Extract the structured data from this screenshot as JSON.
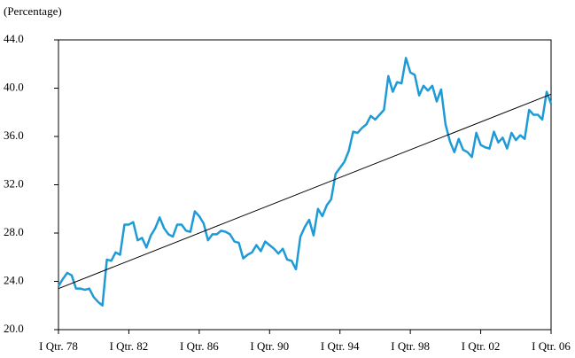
{
  "chart_data": {
    "type": "line",
    "y_label": "(Percentage)",
    "categories": [
      "I Qtr. 78",
      null,
      null,
      null,
      null,
      null,
      null,
      null,
      null,
      null,
      null,
      null,
      null,
      null,
      null,
      null,
      "I Qtr. 82",
      null,
      null,
      null,
      null,
      null,
      null,
      null,
      null,
      null,
      null,
      null,
      null,
      null,
      null,
      null,
      "I Qtr. 86",
      null,
      null,
      null,
      null,
      null,
      null,
      null,
      null,
      null,
      null,
      null,
      null,
      null,
      null,
      null,
      "I Qtr. 90",
      null,
      null,
      null,
      null,
      null,
      null,
      null,
      null,
      null,
      null,
      null,
      null,
      null,
      null,
      null,
      "I Qtr. 94",
      null,
      null,
      null,
      null,
      null,
      null,
      null,
      null,
      null,
      null,
      null,
      null,
      null,
      null,
      null,
      "I Qtr. 98",
      null,
      null,
      null,
      null,
      null,
      null,
      null,
      null,
      null,
      null,
      null,
      null,
      null,
      null,
      null,
      "I Qtr. 02",
      null,
      null,
      null,
      null,
      null,
      null,
      null,
      null,
      null,
      null,
      null,
      null,
      null,
      null,
      null,
      "I Qtr. 06"
    ],
    "series": [
      {
        "color": "#1e9bd7",
        "values": [
          23.6,
          24.2,
          24.7,
          24.5,
          23.4,
          23.4,
          23.3,
          23.4,
          22.7,
          22.3,
          22.0,
          25.8,
          25.7,
          26.4,
          26.2,
          28.7,
          28.7,
          28.9,
          27.4,
          27.6,
          26.8,
          27.8,
          28.4,
          29.3,
          28.4,
          27.9,
          27.7,
          28.7,
          28.7,
          28.2,
          28.1,
          29.8,
          29.4,
          28.8,
          27.4,
          27.9,
          27.9,
          28.2,
          28.1,
          27.9,
          27.3,
          27.2,
          25.9,
          26.2,
          26.4,
          27.0,
          26.5,
          27.3,
          27.0,
          26.7,
          26.3,
          26.7,
          25.8,
          25.7,
          25.0,
          27.7,
          28.5,
          29.1,
          27.8,
          30.0,
          29.4,
          30.3,
          30.8,
          32.9,
          33.4,
          33.9,
          34.8,
          36.4,
          36.3,
          36.7,
          37.0,
          37.7,
          37.4,
          37.8,
          38.2,
          41.0,
          39.7,
          40.5,
          40.4,
          42.5,
          41.3,
          41.1,
          39.4,
          40.2,
          39.8,
          40.2,
          38.9,
          39.9,
          37.0,
          35.6,
          34.7,
          35.8,
          34.9,
          34.7,
          34.3,
          36.3,
          35.3,
          35.1,
          35.0,
          36.4,
          35.5,
          35.9,
          35.0,
          36.3,
          35.7,
          36.1,
          35.8,
          38.2,
          37.8,
          37.8,
          37.4,
          39.7,
          38.7
        ]
      }
    ],
    "trend": [
      23.4,
      39.5
    ],
    "trend_color": "#000000",
    "ylim": [
      20,
      44
    ],
    "yticks": [
      {
        "value": 20,
        "label": "20.0"
      },
      {
        "value": 24,
        "label": "24.0"
      },
      {
        "value": 28,
        "label": "28.0"
      },
      {
        "value": 32,
        "label": "32.0"
      },
      {
        "value": 36,
        "label": "36.0"
      },
      {
        "value": 40,
        "label": "40.0"
      },
      {
        "value": 44,
        "label": "44.0"
      }
    ]
  }
}
